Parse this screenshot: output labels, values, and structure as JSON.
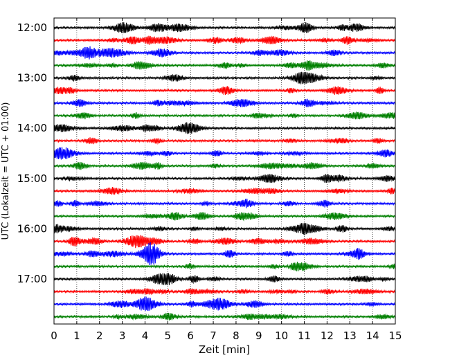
{
  "chart_data": {
    "type": "line",
    "subtype": "helicorder",
    "xlabel": "Zeit  [min]",
    "ylabel": "UTC (Lokalzeit = UTC + 01:00)",
    "xlim": [
      0,
      15
    ],
    "x_ticks": [
      "0",
      "1",
      "2",
      "3",
      "4",
      "5",
      "6",
      "7",
      "8",
      "9",
      "10",
      "11",
      "12",
      "13",
      "14",
      "15"
    ],
    "y_tick_labels": [
      "12:00",
      "13:00",
      "14:00",
      "15:00",
      "16:00",
      "17:00"
    ],
    "grid": "vertical dotted lines at each minute",
    "trace_minutes": 15,
    "trace_start_times": [
      "12:00",
      "12:15",
      "12:30",
      "12:45",
      "13:00",
      "13:15",
      "13:30",
      "13:45",
      "14:00",
      "14:15",
      "14:30",
      "14:45",
      "15:00",
      "15:15",
      "15:30",
      "15:45",
      "16:00",
      "16:15",
      "16:30",
      "16:45",
      "17:00",
      "17:15",
      "17:30",
      "17:45"
    ],
    "color_cycle": [
      "#000000",
      "#ff0000",
      "#0000ff",
      "#008000"
    ]
  }
}
